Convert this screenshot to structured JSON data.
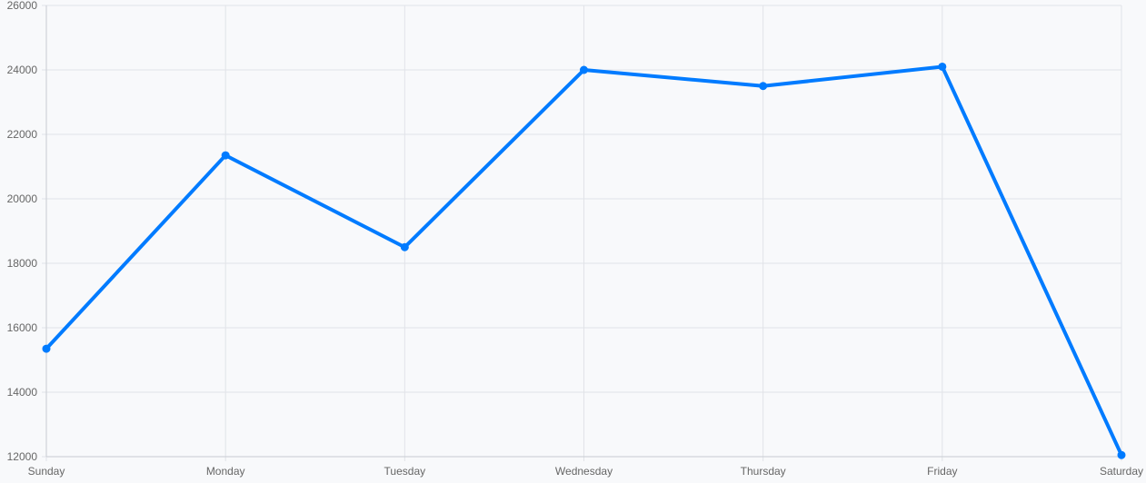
{
  "chart_data": {
    "type": "line",
    "title": "",
    "xlabel": "",
    "ylabel": "",
    "categories": [
      "Sunday",
      "Monday",
      "Tuesday",
      "Wednesday",
      "Thursday",
      "Friday",
      "Saturday"
    ],
    "series": [
      {
        "values": [
          15350,
          21350,
          18500,
          24000,
          23500,
          24100,
          12050
        ],
        "color": "#007bff"
      }
    ],
    "ylim": [
      12000,
      26000
    ],
    "yticks": [
      12000,
      14000,
      16000,
      18000,
      20000,
      22000,
      24000,
      26000
    ],
    "grid": true,
    "legend": "none"
  }
}
